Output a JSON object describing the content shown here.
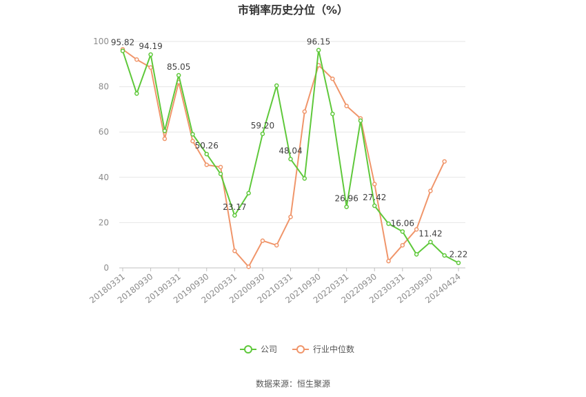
{
  "chart_data": {
    "type": "line",
    "title": "市销率历史分位（%）",
    "source": "数据来源：恒生聚源",
    "ylim": [
      0,
      100
    ],
    "yticks": [
      0,
      20,
      40,
      60,
      80,
      100
    ],
    "x": [
      "20180331",
      "20180630",
      "20180930",
      "20181231",
      "20190331",
      "20190630",
      "20190930",
      "20191231",
      "20200331",
      "20200630",
      "20200930",
      "20201231",
      "20210331",
      "20210630",
      "20210930",
      "20211231",
      "20220331",
      "20220630",
      "20220930",
      "20221231",
      "20230331",
      "20230630",
      "20230930",
      "20231231",
      "20240424"
    ],
    "xtick_labels": [
      "20180331",
      "20180930",
      "20190331",
      "20190930",
      "20200331",
      "20200930",
      "20210331",
      "20210930",
      "20220331",
      "20220930",
      "20230331",
      "20230930",
      "20240424"
    ],
    "grid": true,
    "legend_position": "bottom",
    "series": [
      {
        "name": "公司",
        "color": "#5ec83a",
        "values": [
          95.82,
          77.0,
          94.19,
          60.5,
          85.05,
          59.0,
          50.26,
          41.5,
          23.17,
          33.0,
          59.2,
          80.5,
          48.04,
          39.5,
          96.15,
          68.0,
          26.96,
          65.0,
          27.42,
          19.5,
          16.06,
          6.0,
          11.42,
          5.5,
          2.22
        ],
        "labels": {
          "0": "95.82",
          "2": "94.19",
          "4": "85.05",
          "6": "50.26",
          "8": "23.17",
          "10": "59.20",
          "12": "48.04",
          "14": "96.15",
          "16": "26.96",
          "18": "27.42",
          "20": "16.06",
          "22": "11.42",
          "24": "2.22"
        }
      },
      {
        "name": "行业中位数",
        "color": "#f0956a",
        "values": [
          96.5,
          92.0,
          88.5,
          57.0,
          82.0,
          56.0,
          45.5,
          44.5,
          7.5,
          0.5,
          12.0,
          10.0,
          22.5,
          69.0,
          89.5,
          83.5,
          71.5,
          66.0,
          37.0,
          3.0,
          10.0,
          17.0,
          34.0,
          47.0,
          null
        ]
      }
    ]
  }
}
